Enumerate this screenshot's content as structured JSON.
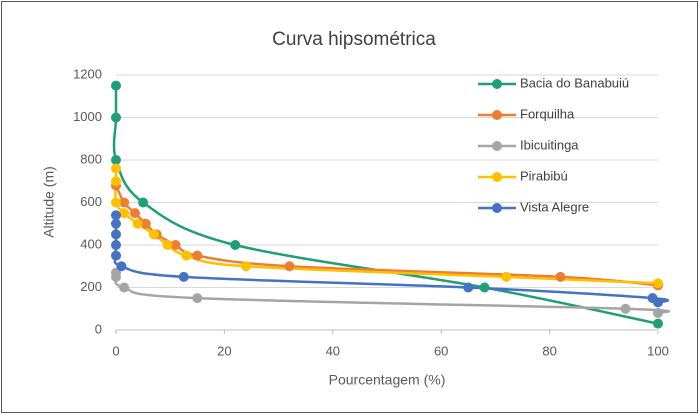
{
  "chart_data": {
    "type": "scatter",
    "title": "Curva hipsométrica",
    "x_label": "Pourcentagem (%)",
    "y_label": "Altitude (m)",
    "xlim": [
      0,
      100
    ],
    "xticks": [
      0,
      20,
      40,
      60,
      80,
      100
    ],
    "ylim": [
      0,
      1200
    ],
    "yticks": [
      0,
      200,
      400,
      600,
      800,
      1000,
      1200
    ],
    "grid": true,
    "legend": "upper right",
    "series": [
      {
        "name": "Bacia do Banabuiú",
        "color": "#1f9e78",
        "x": [
          0,
          0,
          0,
          5,
          22,
          68,
          100
        ],
        "values": [
          1150,
          1000,
          800,
          600,
          400,
          200,
          30
        ]
      },
      {
        "name": "Forquilha",
        "color": "#ed7d31",
        "x": [
          0,
          1.5,
          3.5,
          5.5,
          7.5,
          11,
          15,
          32,
          82,
          100
        ],
        "values": [
          680,
          600,
          550,
          500,
          450,
          400,
          350,
          300,
          250,
          210
        ]
      },
      {
        "name": "Ibicuitinga",
        "color": "#a5a5a5",
        "x": [
          0,
          0,
          1.5,
          15,
          94,
          100
        ],
        "values": [
          270,
          250,
          200,
          150,
          100,
          80
        ]
      },
      {
        "name": "Pirabibú",
        "color": "#ffc000",
        "x": [
          0,
          0,
          0,
          1.5,
          4,
          7,
          9.5,
          13,
          24,
          72,
          100
        ],
        "values": [
          760,
          700,
          600,
          550,
          500,
          450,
          400,
          350,
          300,
          250,
          220
        ]
      },
      {
        "name": "Vista Alegre",
        "color": "#4472c4",
        "x": [
          0,
          0,
          0,
          0,
          0,
          1,
          12.5,
          65,
          99,
          100
        ],
        "values": [
          540,
          500,
          450,
          400,
          350,
          300,
          250,
          200,
          150,
          130
        ]
      }
    ]
  }
}
